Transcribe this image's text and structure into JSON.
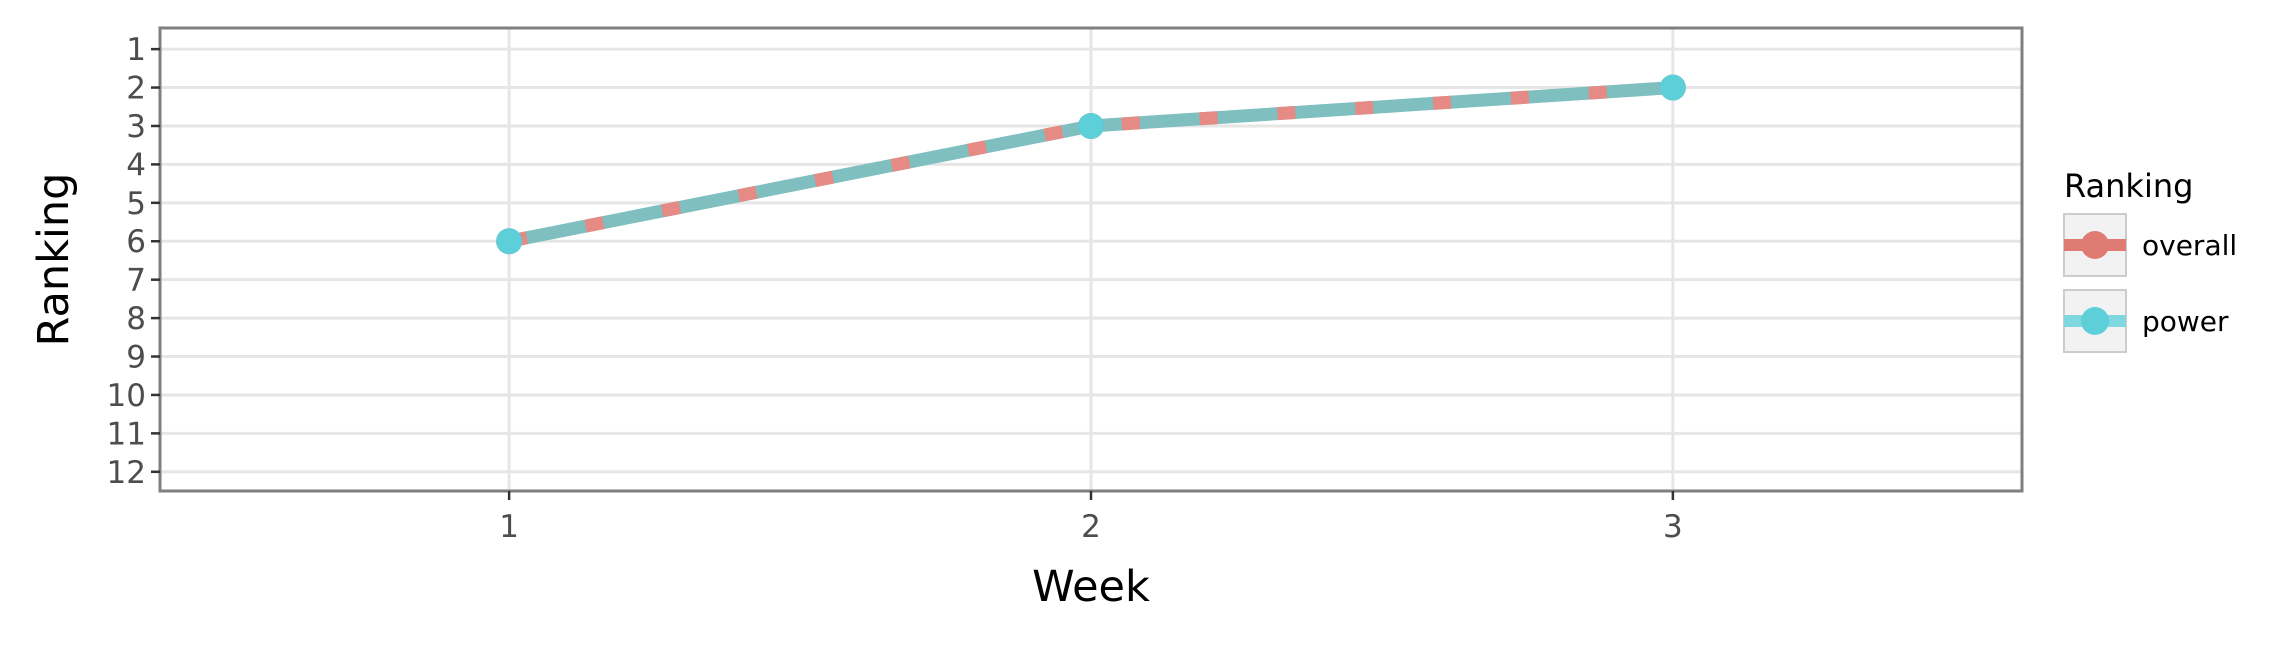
{
  "chart_data": {
    "type": "line",
    "x": [
      1,
      2,
      3
    ],
    "x_ticks": [
      "1",
      "2",
      "3"
    ],
    "xlabel": "Week",
    "ylabel": "Ranking",
    "y_ticks": [
      "1",
      "2",
      "3",
      "4",
      "5",
      "6",
      "7",
      "8",
      "9",
      "10",
      "11",
      "12"
    ],
    "xlim": [
      0.4,
      3.6
    ],
    "ylim": [
      12.5,
      0.45
    ],
    "y_reversed": true,
    "grid": true,
    "legend": {
      "title": "Ranking",
      "position": "right"
    },
    "series": [
      {
        "name": "overall",
        "values": [
          6,
          3,
          2
        ],
        "color": "#e07b74",
        "line_style": "dashed"
      },
      {
        "name": "power",
        "values": [
          6,
          3,
          2
        ],
        "color": "#5ccfd8",
        "line_style": "solid"
      }
    ]
  }
}
